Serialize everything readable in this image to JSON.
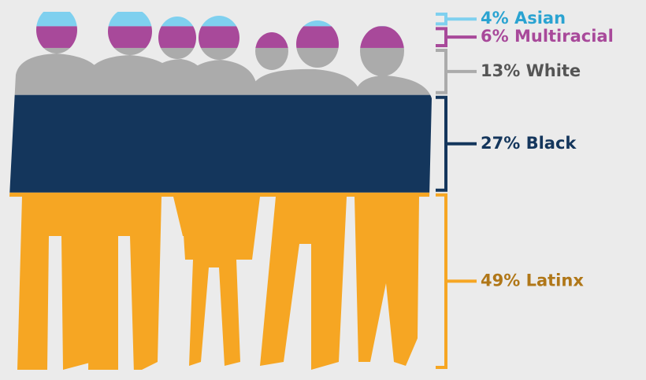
{
  "chart_data": {
    "type": "silhouette-stack",
    "categories": [
      "Asian",
      "Multiracial",
      "White",
      "Black",
      "Latinx"
    ],
    "values": [
      4,
      6,
      13,
      27,
      49
    ],
    "value_labels": [
      "4%",
      "6%",
      "13%",
      "27%",
      "49%"
    ],
    "colors": [
      "#7fd0ef",
      "#a8499a",
      "#ababab",
      "#14365c",
      "#f6a623"
    ],
    "label_colors": [
      "#2aa3d1",
      "#a8499a",
      "#555555",
      "#14365c",
      "#b07718"
    ]
  }
}
